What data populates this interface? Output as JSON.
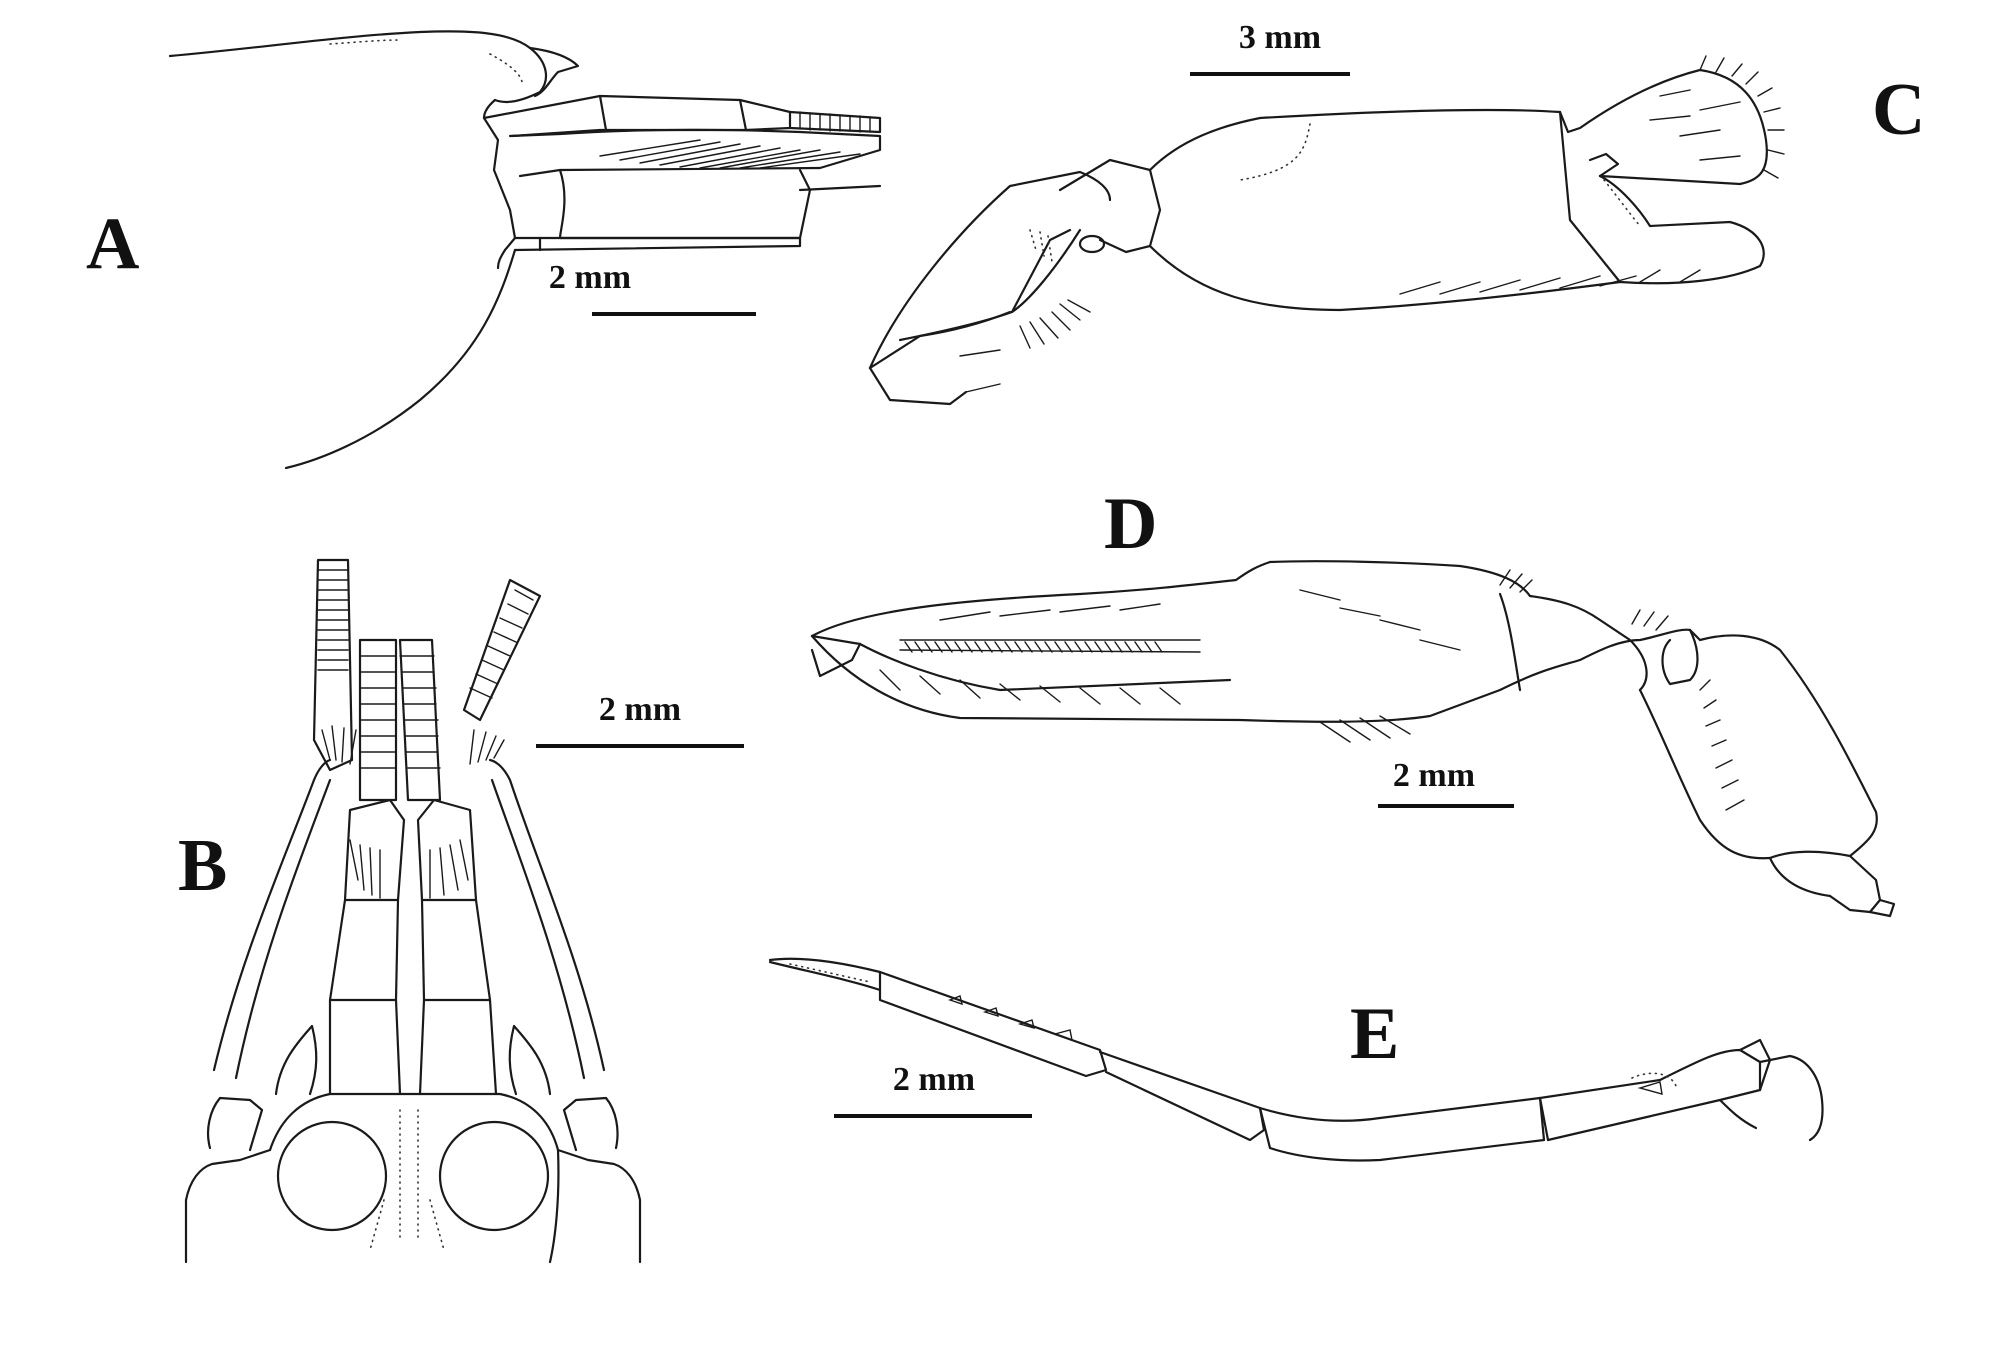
{
  "panels": [
    {
      "letter": "A",
      "scale_label": "2 mm"
    },
    {
      "letter": "B",
      "scale_label": "2 mm"
    },
    {
      "letter": "C",
      "scale_label": "3 mm"
    },
    {
      "letter": "D",
      "scale_label": "2 mm"
    },
    {
      "letter": "E",
      "scale_label": "2 mm"
    }
  ],
  "colors": {
    "ink": "#1a1a1a",
    "background": "#ffffff"
  }
}
